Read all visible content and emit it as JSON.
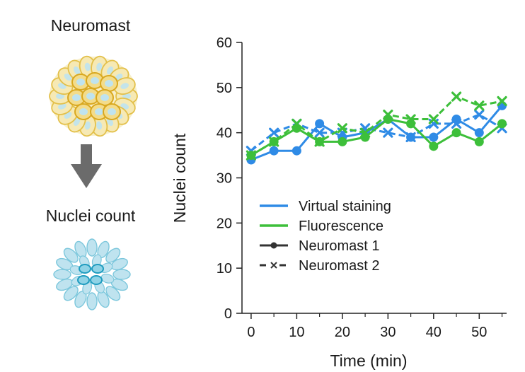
{
  "schematic": {
    "top_label": "Neuromast",
    "bottom_label": "Nuclei count",
    "arrow_icon": "down-arrow-icon",
    "colors": {
      "cell_outline": "#e3c04a",
      "cell_fill": "#f6e9b4",
      "nucleus": "#bfe3ef",
      "nucleus_outline": "#7cc7dc",
      "arrow": "#6b6b6b"
    }
  },
  "chart_data": {
    "type": "line",
    "xlabel": "Time (min)",
    "ylabel": "Nuclei count",
    "xlim": [
      -2,
      56
    ],
    "ylim": [
      0,
      60
    ],
    "xticks": [
      0,
      10,
      20,
      30,
      40,
      50
    ],
    "yticks": [
      0,
      10,
      20,
      30,
      40,
      50,
      60
    ],
    "grid": false,
    "legend": {
      "placement": "center-right",
      "entries": [
        {
          "label": "Virtual staining",
          "kind": "color",
          "color": "#2f8be6"
        },
        {
          "label": "Fluorescence",
          "kind": "color",
          "color": "#3dbf3a"
        },
        {
          "label": "Neuromast 1",
          "kind": "style",
          "line": "solid",
          "marker": "circle"
        },
        {
          "label": "Neuromast 2",
          "kind": "style",
          "line": "dashed",
          "marker": "x"
        }
      ]
    },
    "x": [
      0,
      5,
      10,
      15,
      20,
      25,
      30,
      35,
      40,
      45,
      50,
      55
    ],
    "series": [
      {
        "method": "Virtual staining",
        "neuromast": "Neuromast 1",
        "color": "#2f8be6",
        "line": "solid",
        "marker": "circle",
        "values": [
          34,
          36,
          36,
          42,
          39,
          40,
          43,
          39,
          39,
          43,
          40,
          46
        ]
      },
      {
        "method": "Virtual staining",
        "neuromast": "Neuromast 2",
        "color": "#2f8be6",
        "line": "dashed",
        "marker": "x",
        "values": [
          36,
          40,
          42,
          40,
          40,
          41,
          40,
          39,
          42,
          42,
          44,
          41
        ]
      },
      {
        "method": "Fluorescence",
        "neuromast": "Neuromast 1",
        "color": "#3dbf3a",
        "line": "solid",
        "marker": "circle",
        "values": [
          35,
          38,
          41,
          38,
          38,
          39,
          43,
          42,
          37,
          40,
          38,
          42
        ]
      },
      {
        "method": "Fluorescence",
        "neuromast": "Neuromast 2",
        "color": "#3dbf3a",
        "line": "dashed",
        "marker": "x",
        "values": [
          35,
          38,
          42,
          38,
          41,
          40,
          44,
          43,
          43,
          48,
          46,
          47
        ]
      }
    ]
  }
}
